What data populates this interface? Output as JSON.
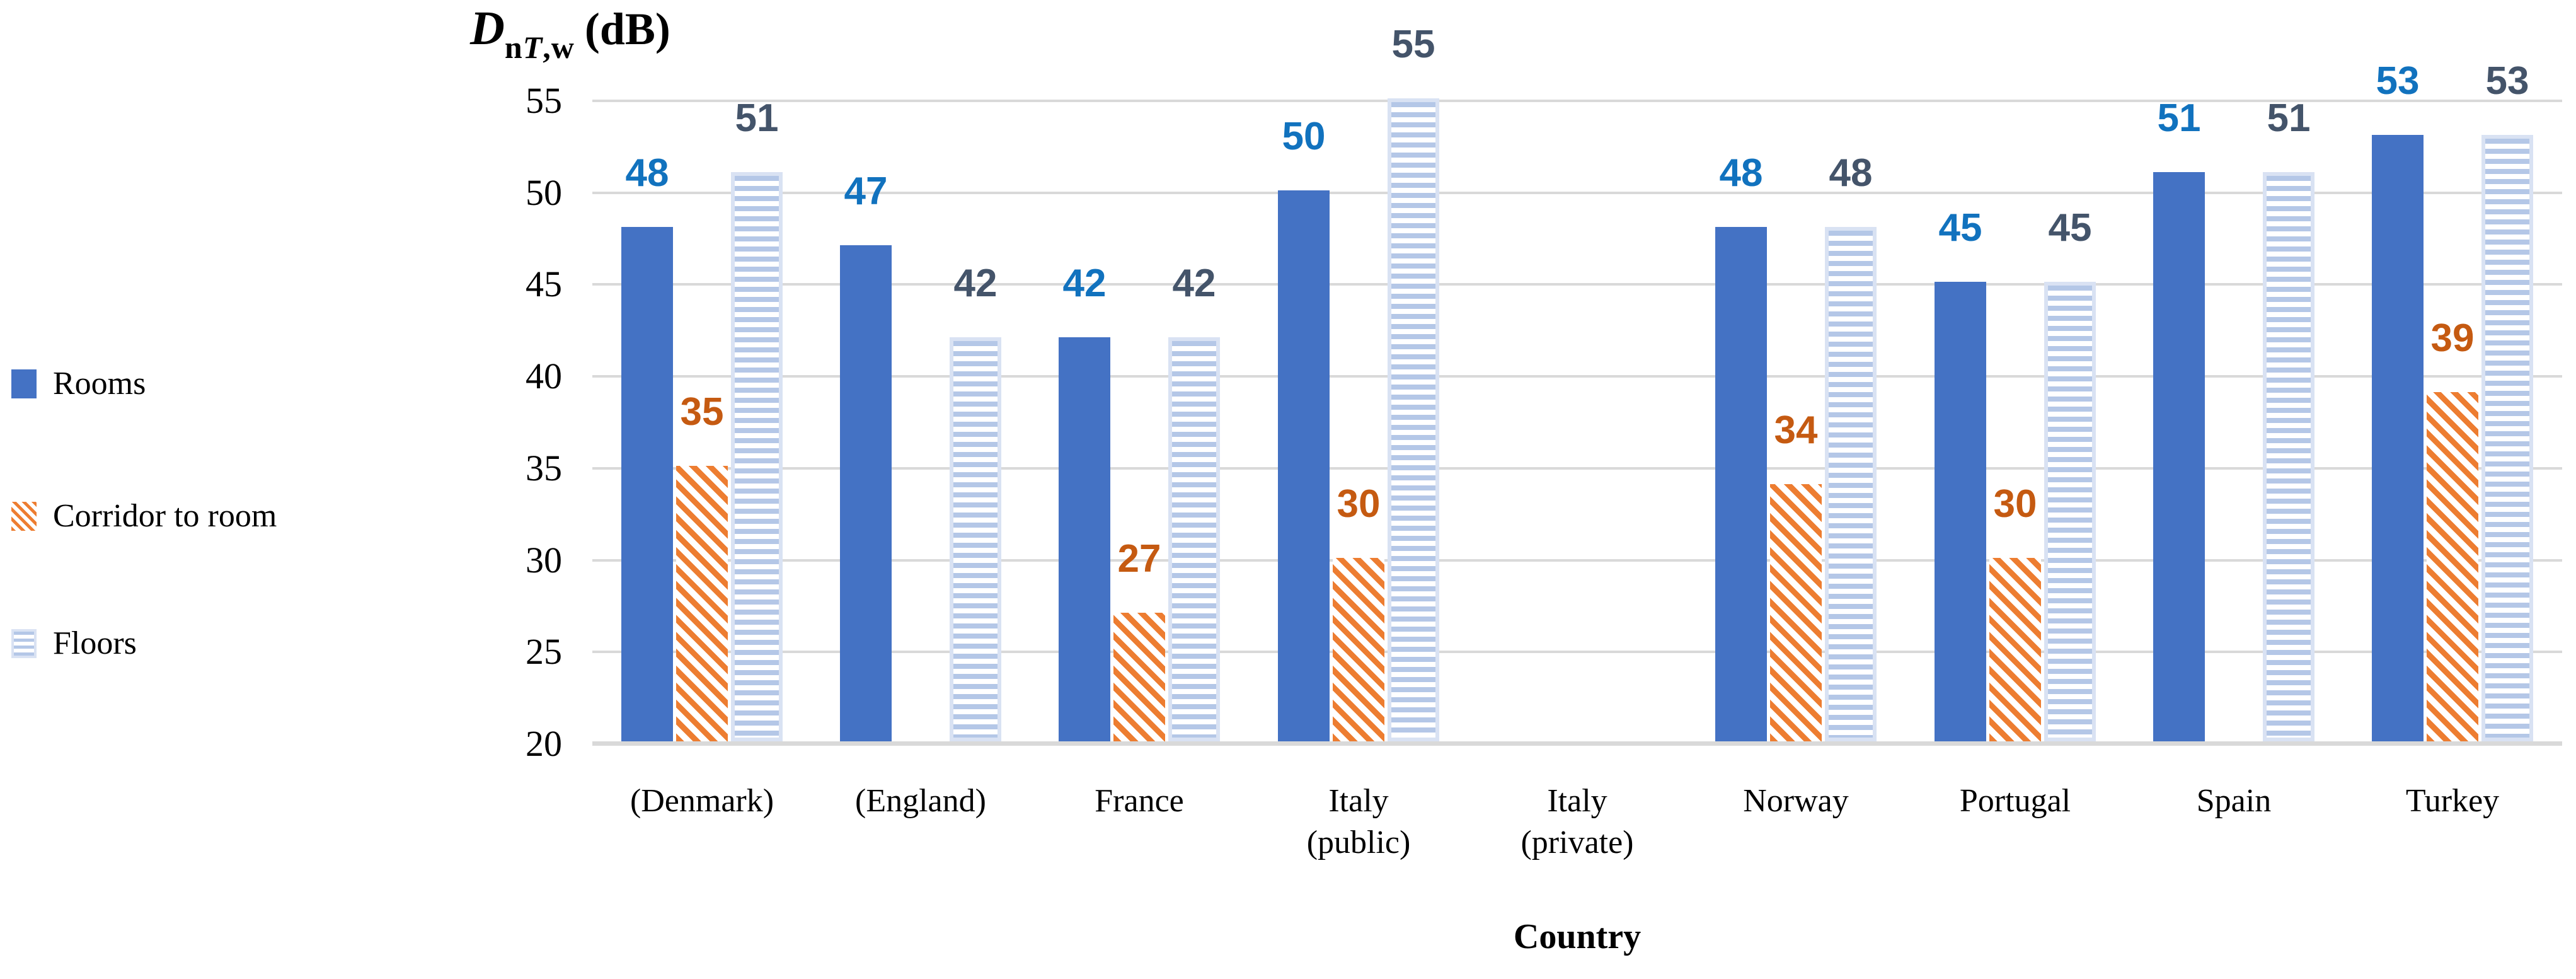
{
  "chart_data": {
    "type": "bar",
    "title": "DnT,w (dB)",
    "y_axis_title": {
      "symbol": "D",
      "sub_regular": "n",
      "sub_italic": "T",
      "sub_rest": ",w",
      "suffix": "(dB)"
    },
    "x_axis_title": "Country",
    "y_axis": {
      "min": 20,
      "max": 55,
      "step": 5,
      "tick_labels": [
        55,
        50,
        45,
        40,
        35,
        30,
        25,
        20
      ]
    },
    "grid": "on",
    "grid_color": "#D9D9D9",
    "legend_position": "left",
    "categories": [
      {
        "slug": "denmark",
        "label_lines": [
          "(Denmark)"
        ]
      },
      {
        "slug": "england",
        "label_lines": [
          "(England)"
        ]
      },
      {
        "slug": "france",
        "label_lines": [
          "France"
        ]
      },
      {
        "slug": "italy-public",
        "label_lines": [
          "Italy",
          "(public)"
        ]
      },
      {
        "slug": "italy-private",
        "label_lines": [
          "Italy",
          "(private)"
        ]
      },
      {
        "slug": "norway",
        "label_lines": [
          "Norway"
        ]
      },
      {
        "slug": "portugal",
        "label_lines": [
          "Portugal"
        ]
      },
      {
        "slug": "spain",
        "label_lines": [
          "Spain"
        ]
      },
      {
        "slug": "turkey",
        "label_lines": [
          "Turkey"
        ]
      }
    ],
    "series": [
      {
        "name": "Rooms",
        "key": "rooms",
        "pattern": "solid",
        "color": "#4472C4",
        "label_color": "#1172BE",
        "values": [
          48,
          47,
          42,
          50,
          null,
          48,
          45,
          51,
          53
        ]
      },
      {
        "name": "Corridor to room",
        "key": "corridor",
        "pattern": "diagonal-stripes",
        "color": "#ED7D31",
        "label_color": "#C55A11",
        "values": [
          35,
          null,
          27,
          30,
          null,
          34,
          30,
          null,
          39
        ]
      },
      {
        "name": "Floors",
        "key": "floors",
        "pattern": "horizontal-stripes",
        "color": "#B4C7E7",
        "border_color": "#D9E2F3",
        "label_color": "#44546A",
        "values": [
          51,
          42,
          42,
          55,
          null,
          48,
          45,
          51,
          53
        ]
      }
    ]
  }
}
